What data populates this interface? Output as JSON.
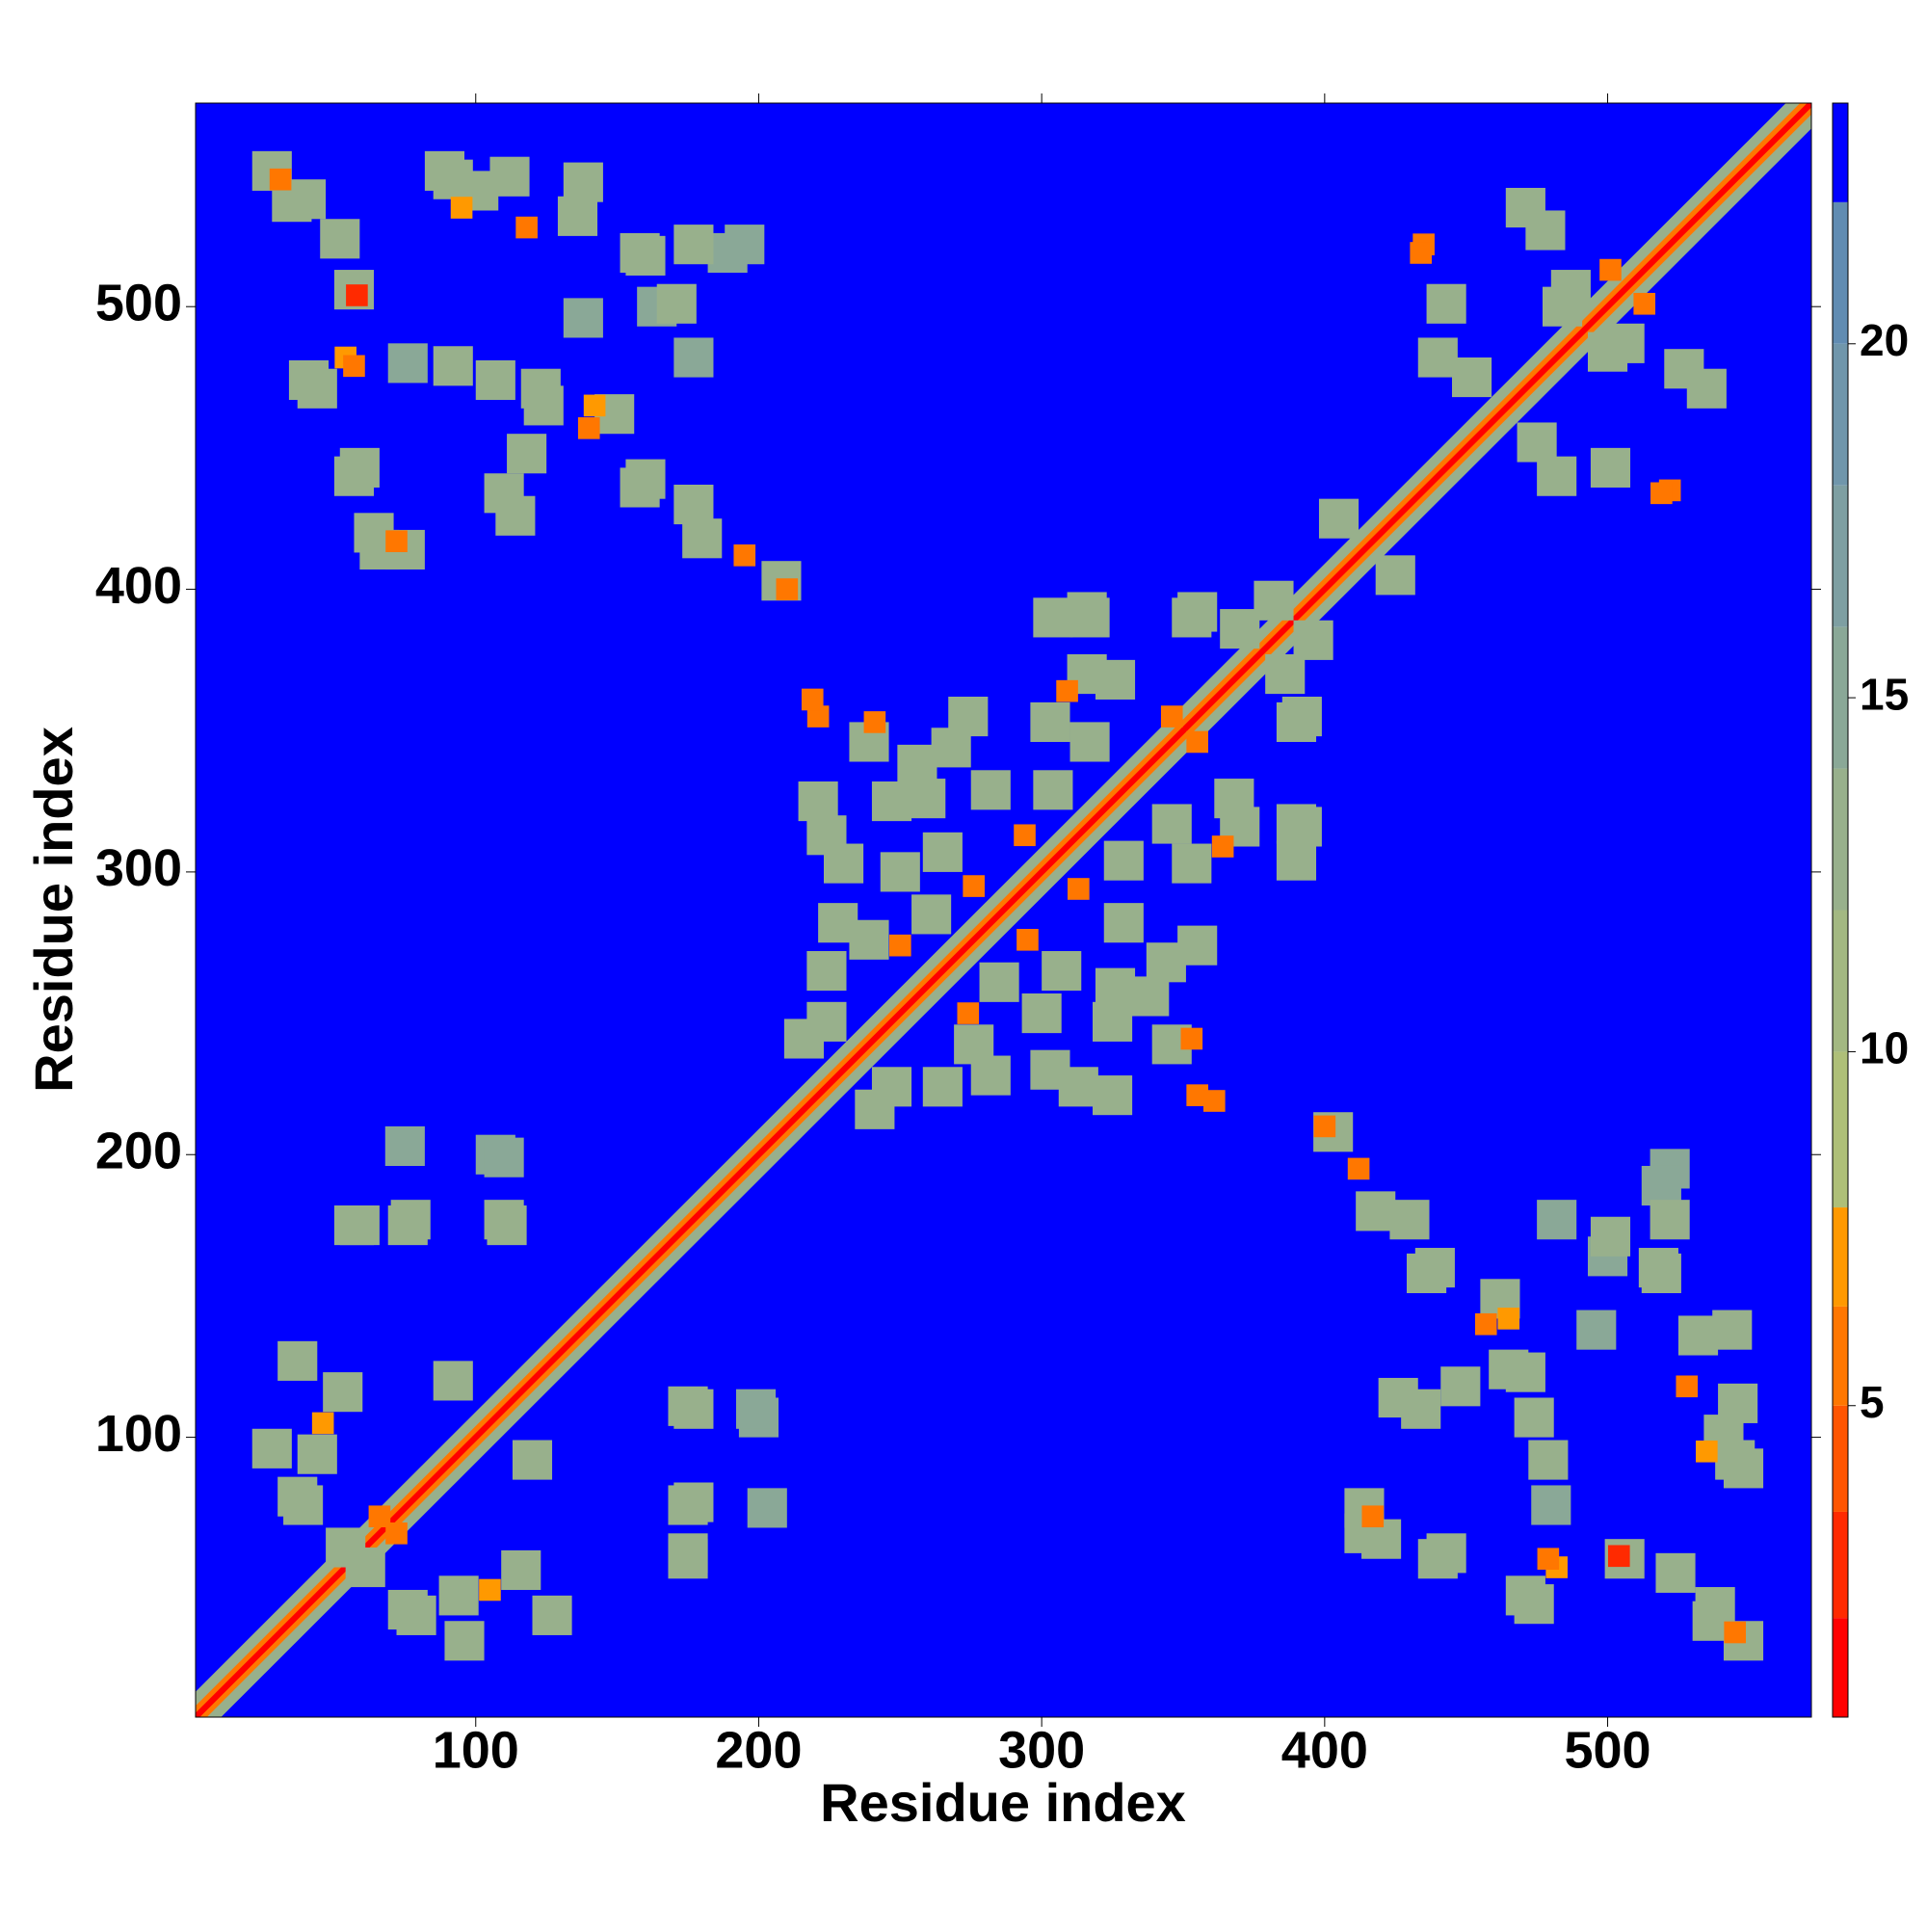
{
  "chart_data": {
    "type": "heatmap",
    "xlabel": "Residue index",
    "ylabel": "Residue index",
    "xlim": [
      1,
      572
    ],
    "ylim": [
      1,
      572
    ],
    "xticks": [
      100,
      200,
      300,
      400,
      500
    ],
    "yticks": [
      100,
      200,
      300,
      400,
      500
    ],
    "symmetric": true,
    "colorbar": {
      "levels": [
        0.6,
        2,
        3.5,
        5,
        6.4,
        7.8,
        10,
        12,
        14,
        16,
        18,
        20,
        22,
        23.4
      ],
      "colors": [
        "#ff0000",
        "#ff2a00",
        "#ff5500",
        "#ff7700",
        "#ff9900",
        "#aebf78",
        "#a3b882",
        "#98b08c",
        "#8aa897",
        "#7e9fa2",
        "#7096ab",
        "#618cb2",
        "#0000ff"
      ],
      "ticks": [
        5,
        10,
        15,
        20
      ]
    },
    "diagonal": [
      {
        "width": 18,
        "value": 13
      },
      {
        "width": 8,
        "value": 6
      },
      {
        "width": 3,
        "value": 1
      }
    ],
    "cells": [
      [
        28,
        548,
        12
      ],
      [
        40,
        538,
        12
      ],
      [
        52,
        524,
        12
      ],
      [
        58,
        504,
        3
      ],
      [
        54,
        482,
        7
      ],
      [
        41,
        474,
        13
      ],
      [
        59,
        443,
        12
      ],
      [
        72,
        417,
        6
      ],
      [
        64,
        420,
        12
      ],
      [
        76,
        480,
        14
      ],
      [
        89,
        548,
        12
      ],
      [
        112,
        546,
        12
      ],
      [
        138,
        544,
        12
      ],
      [
        160,
        518,
        12
      ],
      [
        95,
        535,
        7
      ],
      [
        124,
        465,
        12
      ],
      [
        142,
        465,
        7
      ],
      [
        160,
        439,
        12
      ],
      [
        177,
        430,
        12
      ],
      [
        195,
        412,
        6
      ],
      [
        208,
        403,
        12
      ],
      [
        110,
        434,
        12
      ],
      [
        107,
        474,
        13
      ],
      [
        177,
        522,
        12
      ],
      [
        164,
        500,
        14
      ],
      [
        177,
        482,
        14
      ],
      [
        195,
        522,
        14
      ],
      [
        138,
        496,
        14
      ],
      [
        37,
        127,
        12
      ],
      [
        46,
        105,
        7
      ],
      [
        59,
        175,
        12
      ],
      [
        76,
        175,
        12
      ],
      [
        111,
        175,
        12
      ],
      [
        107,
        200,
        14
      ],
      [
        28,
        96,
        12
      ],
      [
        37,
        79,
        12
      ],
      [
        54,
        61,
        12
      ],
      [
        66,
        72,
        6
      ],
      [
        44,
        94,
        12
      ],
      [
        53,
        116,
        12
      ],
      [
        92,
        120,
        12
      ],
      [
        39,
        76,
        12
      ],
      [
        110,
        177,
        13
      ],
      [
        110,
        199,
        14
      ],
      [
        77,
        177,
        12
      ],
      [
        57,
        175,
        12
      ],
      [
        75,
        203,
        14
      ],
      [
        221,
        355,
        6
      ],
      [
        239,
        346,
        12
      ],
      [
        256,
        338,
        12
      ],
      [
        230,
        303,
        12
      ],
      [
        221,
        325,
        12
      ],
      [
        247,
        325,
        12
      ],
      [
        265,
        307,
        12
      ],
      [
        274,
        355,
        13
      ],
      [
        304,
        390,
        12
      ],
      [
        317,
        390,
        12
      ],
      [
        309,
        364,
        6
      ],
      [
        326,
        368,
        13
      ],
      [
        353,
        390,
        12
      ],
      [
        370,
        386,
        12
      ],
      [
        282,
        329,
        12
      ],
      [
        304,
        329,
        12
      ],
      [
        317,
        346,
        12
      ],
      [
        239,
        276,
        12
      ],
      [
        261,
        285,
        12
      ],
      [
        294,
        313,
        6
      ],
      [
        268,
        344,
        12
      ],
      [
        241,
        353,
        6
      ],
      [
        219,
        361,
        6
      ],
      [
        224,
        313,
        12
      ],
      [
        259,
        326,
        12
      ],
      [
        316,
        392,
        12
      ],
      [
        303,
        353,
        12
      ],
      [
        316,
        370,
        12
      ],
      [
        276,
        295,
        6
      ],
      [
        250,
        300,
        12
      ],
      [
        250,
        274,
        6
      ],
      [
        228,
        282,
        12
      ],
      [
        224,
        247,
        12
      ],
      [
        216,
        241,
        12
      ],
      [
        224,
        265,
        12
      ],
      [
        382,
        396,
        12
      ],
      [
        355,
        392,
        12
      ],
      [
        346,
        355,
        5
      ],
      [
        435,
        522,
        6
      ],
      [
        440,
        482,
        12
      ],
      [
        471,
        535,
        12
      ],
      [
        501,
        513,
        6
      ],
      [
        484,
        500,
        12
      ],
      [
        452,
        475,
        12
      ],
      [
        443,
        501,
        12
      ],
      [
        434,
        519,
        6
      ],
      [
        478,
        527,
        12
      ],
      [
        487,
        506,
        12
      ],
      [
        405,
        425,
        12
      ],
      [
        210,
        400,
        5
      ],
      [
        180,
        418,
        12
      ],
      [
        158,
        436,
        12
      ],
      [
        140,
        457,
        6
      ],
      [
        123,
        471,
        12
      ],
      [
        149,
        462,
        12
      ],
      [
        114,
        426,
        12
      ],
      [
        118,
        448,
        12
      ],
      [
        75,
        414,
        12
      ],
      [
        66,
        414,
        12
      ],
      [
        57,
        440,
        13
      ],
      [
        57,
        479,
        6
      ],
      [
        44,
        471,
        12
      ],
      [
        57,
        506,
        12
      ],
      [
        35,
        537,
        12
      ],
      [
        31,
        545,
        5
      ],
      [
        158,
        519,
        12
      ],
      [
        136,
        532,
        12
      ],
      [
        118,
        528,
        6
      ],
      [
        101,
        541,
        12
      ],
      [
        92,
        545,
        12
      ],
      [
        189,
        519,
        14
      ],
      [
        92,
        479,
        13
      ],
      [
        171,
        501,
        13
      ]
    ]
  }
}
